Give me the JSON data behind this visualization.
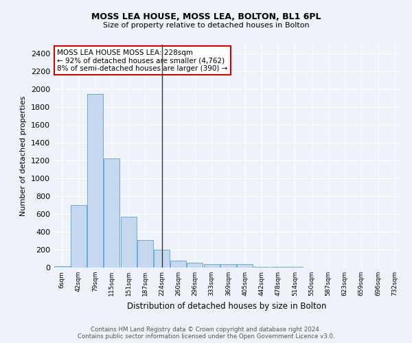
{
  "title": "MOSS LEA HOUSE, MOSS LEA, BOLTON, BL1 6PL",
  "subtitle": "Size of property relative to detached houses in Bolton",
  "xlabel": "Distribution of detached houses by size in Bolton",
  "ylabel": "Number of detached properties",
  "bar_values": [
    15,
    700,
    1950,
    1220,
    570,
    310,
    200,
    80,
    55,
    35,
    35,
    35,
    10,
    10,
    10,
    0,
    0,
    0,
    0,
    0
  ],
  "bin_labels": [
    "6sqm",
    "42sqm",
    "79sqm",
    "115sqm",
    "151sqm",
    "187sqm",
    "224sqm",
    "260sqm",
    "296sqm",
    "333sqm",
    "369sqm",
    "405sqm",
    "442sqm",
    "478sqm",
    "514sqm",
    "550sqm",
    "587sqm",
    "623sqm",
    "659sqm",
    "696sqm",
    "732sqm"
  ],
  "bar_color": "#c5d8f0",
  "bar_edge_color": "#6aaad4",
  "vline_x_index": 6,
  "vline_color": "#333333",
  "annotation_text": "MOSS LEA HOUSE MOSS LEA: 228sqm\n← 92% of detached houses are smaller (4,762)\n8% of semi-detached houses are larger (390) →",
  "annotation_box_color": "#ffffff",
  "annotation_box_edge": "#cc0000",
  "ylim": [
    0,
    2500
  ],
  "yticks": [
    0,
    200,
    400,
    600,
    800,
    1000,
    1200,
    1400,
    1600,
    1800,
    2000,
    2200,
    2400
  ],
  "footer_line1": "Contains HM Land Registry data © Crown copyright and database right 2024.",
  "footer_line2": "Contains public sector information licensed under the Open Government Licence v3.0.",
  "bg_color": "#eef2f9",
  "grid_color": "#ffffff"
}
